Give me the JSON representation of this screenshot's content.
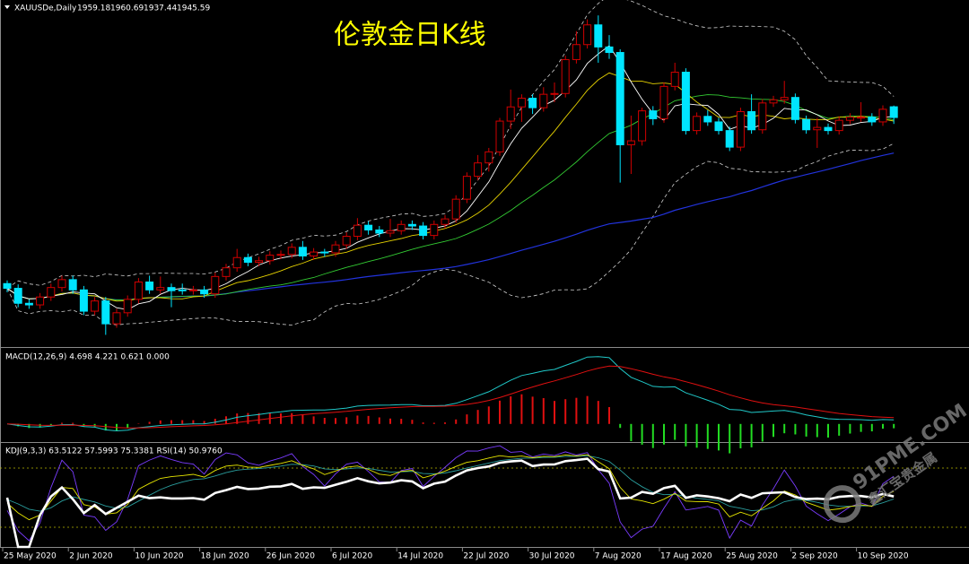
{
  "chart_data": {
    "type": "candlestick",
    "symbol": "XAUUSDe,Daily",
    "title": "伦敦金日K线",
    "macd_label": "MACD(12,26,9) 4.698 4.221 0.621 0.000",
    "kdj_label": "KDJ(9,3,3) 63.5122 57.5993 75.3381  RSI(14) 50.9760",
    "watermark": "91PME.COM",
    "watermark_sub": "鑫汇宝贵金属",
    "up_color": "#d00000",
    "down_color": "#00e5ff",
    "xticks": [
      {
        "value": 0,
        "label": "25 May 2020"
      },
      {
        "value": 6,
        "label": "2 Jun 2020"
      },
      {
        "value": 12,
        "label": "10 Jun 2020"
      },
      {
        "value": 18,
        "label": "18 Jun 2020"
      },
      {
        "value": 24,
        "label": "26 Jun 2020"
      },
      {
        "value": 30,
        "label": "6 Jul 2020"
      },
      {
        "value": 36,
        "label": "14 Jul 2020"
      },
      {
        "value": 42,
        "label": "22 Jul 2020"
      },
      {
        "value": 48,
        "label": "30 Jul 2020"
      },
      {
        "value": 54,
        "label": "7 Aug 2020"
      },
      {
        "value": 60,
        "label": "17 Aug 2020"
      },
      {
        "value": 66,
        "label": "25 Aug 2020"
      },
      {
        "value": 72,
        "label": "2 Sep 2020"
      },
      {
        "value": 78,
        "label": "10 Sep 2020"
      }
    ],
    "ohlc": [
      [
        1735,
        1739,
        1724,
        1729
      ],
      [
        1729,
        1734,
        1705,
        1710
      ],
      [
        1710,
        1715,
        1703,
        1708
      ],
      [
        1708,
        1723,
        1703,
        1718
      ],
      [
        1718,
        1735,
        1713,
        1730
      ],
      [
        1730,
        1745,
        1725,
        1740
      ],
      [
        1740,
        1745,
        1722,
        1727
      ],
      [
        1727,
        1732,
        1695,
        1700
      ],
      [
        1700,
        1718,
        1695,
        1713
      ],
      [
        1713,
        1718,
        1670,
        1684
      ],
      [
        1684,
        1703,
        1679,
        1698
      ],
      [
        1698,
        1720,
        1693,
        1715
      ],
      [
        1715,
        1742,
        1710,
        1737
      ],
      [
        1737,
        1745,
        1722,
        1727
      ],
      [
        1727,
        1744,
        1722,
        1730
      ],
      [
        1730,
        1735,
        1705,
        1726
      ],
      [
        1727,
        1735,
        1721,
        1726
      ],
      [
        1726,
        1732,
        1721,
        1727
      ],
      [
        1727,
        1732,
        1717,
        1722
      ],
      [
        1722,
        1749,
        1717,
        1744
      ],
      [
        1744,
        1760,
        1739,
        1755
      ],
      [
        1755,
        1779,
        1750,
        1768
      ],
      [
        1768,
        1773,
        1757,
        1762
      ],
      [
        1762,
        1769,
        1757,
        1764
      ],
      [
        1764,
        1776,
        1759,
        1771
      ],
      [
        1771,
        1777,
        1766,
        1772
      ],
      [
        1772,
        1786,
        1767,
        1781
      ],
      [
        1781,
        1789,
        1765,
        1770
      ],
      [
        1770,
        1780,
        1765,
        1775
      ],
      [
        1775,
        1779,
        1769,
        1774
      ],
      [
        1774,
        1789,
        1769,
        1784
      ],
      [
        1784,
        1800,
        1779,
        1795
      ],
      [
        1795,
        1818,
        1790,
        1809
      ],
      [
        1809,
        1814,
        1797,
        1803
      ],
      [
        1803,
        1808,
        1794,
        1799
      ],
      [
        1799,
        1817,
        1794,
        1802
      ],
      [
        1802,
        1815,
        1797,
        1810
      ],
      [
        1810,
        1815,
        1803,
        1808
      ],
      [
        1808,
        1813,
        1791,
        1796
      ],
      [
        1796,
        1815,
        1791,
        1810
      ],
      [
        1810,
        1822,
        1805,
        1817
      ],
      [
        1817,
        1847,
        1812,
        1842
      ],
      [
        1842,
        1876,
        1837,
        1871
      ],
      [
        1871,
        1898,
        1866,
        1888
      ],
      [
        1888,
        1907,
        1877,
        1902
      ],
      [
        1902,
        1945,
        1897,
        1941
      ],
      [
        1941,
        1981,
        1931,
        1959
      ],
      [
        1959,
        1975,
        1940,
        1970
      ],
      [
        1970,
        1975,
        1950,
        1958
      ],
      [
        1958,
        1984,
        1953,
        1975
      ],
      [
        1975,
        1990,
        1965,
        1976
      ],
      [
        1976,
        2024,
        1971,
        2019
      ],
      [
        2019,
        2055,
        2014,
        2038
      ],
      [
        2038,
        2070,
        2033,
        2063
      ],
      [
        2063,
        2075,
        2015,
        2035
      ],
      [
        2035,
        2050,
        2020,
        2028
      ],
      [
        2028,
        2032,
        1863,
        1911
      ],
      [
        1911,
        1948,
        1874,
        1916
      ],
      [
        1916,
        1958,
        1910,
        1954
      ],
      [
        1954,
        1960,
        1936,
        1944
      ],
      [
        1944,
        1990,
        1939,
        1985
      ],
      [
        1985,
        2015,
        1980,
        2003
      ],
      [
        2003,
        2008,
        1924,
        1929
      ],
      [
        1929,
        1952,
        1924,
        1947
      ],
      [
        1947,
        1955,
        1935,
        1940
      ],
      [
        1940,
        1945,
        1924,
        1929
      ],
      [
        1929,
        1934,
        1903,
        1908
      ],
      [
        1908,
        1958,
        1903,
        1953
      ],
      [
        1953,
        1975,
        1925,
        1930
      ],
      [
        1930,
        1969,
        1925,
        1964
      ],
      [
        1964,
        1973,
        1959,
        1968
      ],
      [
        1968,
        1992,
        1963,
        1971
      ],
      [
        1971,
        1976,
        1938,
        1943
      ],
      [
        1943,
        1948,
        1925,
        1930
      ],
      [
        1930,
        1945,
        1907,
        1933
      ],
      [
        1933,
        1938,
        1924,
        1929
      ],
      [
        1929,
        1947,
        1924,
        1942
      ],
      [
        1942,
        1951,
        1937,
        1946
      ],
      [
        1945,
        1965,
        1940,
        1946
      ],
      [
        1946,
        1951,
        1935,
        1940
      ],
      [
        1940,
        1961,
        1935,
        1956
      ],
      [
        1959.18,
        1960.69,
        1937.44,
        1945.59
      ]
    ]
  }
}
